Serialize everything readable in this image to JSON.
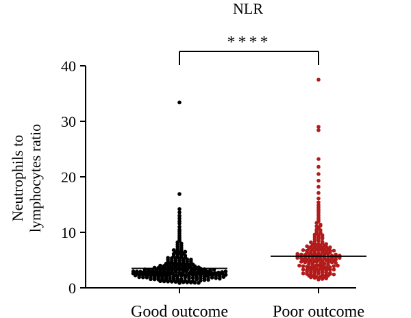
{
  "chart_data": {
    "type": "scatter",
    "title": "NLR",
    "ylabel_lines": [
      "Neutrophils to",
      "lymphocytes ratio"
    ],
    "xlabel": "",
    "categories": [
      "Good outcome",
      "Poor outcome"
    ],
    "ylim": [
      0,
      40
    ],
    "yticks": [
      0,
      10,
      20,
      30,
      40
    ],
    "grid": false,
    "significance": "****",
    "series": [
      {
        "name": "Good outcome",
        "color": "#000000",
        "median": 3.5,
        "values": [
          33.4,
          16.9,
          14.2,
          13.6,
          13.0,
          12.5,
          12.0,
          11.6,
          11.0,
          10.5,
          10.2,
          9.8,
          9.4,
          9.1,
          8.8,
          8.5,
          8.2,
          8.0,
          7.8,
          7.6,
          7.4,
          7.2,
          7.0,
          6.9,
          6.8,
          6.7,
          6.6,
          6.5,
          6.4,
          6.3,
          6.2,
          6.1,
          6.0,
          5.9,
          5.8,
          5.7,
          5.6,
          5.5,
          5.45,
          5.4,
          5.35,
          5.3,
          5.25,
          5.2,
          5.15,
          5.1,
          5.05,
          5.0,
          4.95,
          4.9,
          4.85,
          4.8,
          4.75,
          4.7,
          4.65,
          4.6,
          4.55,
          4.5,
          4.45,
          4.4,
          4.35,
          4.3,
          4.25,
          4.2,
          4.15,
          4.1,
          4.05,
          4.0,
          3.96,
          3.92,
          3.88,
          3.84,
          3.8,
          3.76,
          3.72,
          3.68,
          3.64,
          3.6,
          3.56,
          3.52,
          3.48,
          3.44,
          3.4,
          3.36,
          3.32,
          3.28,
          3.24,
          3.2,
          3.16,
          3.12,
          3.08,
          3.04,
          3.0,
          2.97,
          2.94,
          2.91,
          2.88,
          2.85,
          2.82,
          2.79,
          2.76,
          2.73,
          2.7,
          2.67,
          2.64,
          2.61,
          2.58,
          2.55,
          2.52,
          2.49,
          2.46,
          2.43,
          2.4,
          2.37,
          2.34,
          2.31,
          2.28,
          2.25,
          2.22,
          2.19,
          2.16,
          2.13,
          2.1,
          2.07,
          2.04,
          2.01,
          1.98,
          1.95,
          1.92,
          1.89,
          1.86,
          1.83,
          1.8,
          1.77,
          1.74,
          1.71,
          1.68,
          1.65,
          1.62,
          1.59,
          1.56,
          1.53,
          1.5,
          1.47,
          1.44,
          1.41,
          1.38,
          1.35,
          1.32,
          1.29,
          1.26,
          1.23,
          1.2,
          1.17,
          1.14,
          1.11,
          1.08,
          1.05,
          1.02,
          0.99,
          0.96,
          0.93,
          0.9,
          0.87,
          4.2,
          3.9,
          3.7,
          3.5,
          3.3,
          3.1,
          2.9,
          2.7,
          2.5,
          2.3,
          2.1,
          1.9,
          1.7,
          1.5,
          1.3,
          3.6,
          3.4,
          3.2,
          3.0,
          2.8,
          2.6,
          2.4,
          2.2,
          2.0,
          1.8,
          1.6,
          1.4,
          3.55,
          3.25,
          2.95,
          2.65,
          2.35,
          2.05,
          1.75,
          1.45,
          3.45,
          3.15,
          2.85,
          2.55,
          2.25,
          1.95,
          1.65,
          3.35,
          3.05,
          2.75,
          2.45,
          2.15,
          1.85,
          2.95,
          2.65,
          2.35,
          2.05,
          2.8,
          2.5,
          2.2,
          2.6,
          2.3,
          2.7,
          2.4,
          2.5,
          2.6,
          2.45,
          2.55,
          2.35,
          2.65,
          2.25,
          2.75,
          2.15,
          2.85,
          2.05,
          2.95,
          1.95,
          3.05,
          1.85,
          3.15,
          1.75,
          3.25,
          1.65
        ]
      },
      {
        "name": "Poor outcome",
        "color": "#b31b1b",
        "median": 5.7,
        "values": [
          37.5,
          29.0,
          28.4,
          23.2,
          21.8,
          20.5,
          19.3,
          18.2,
          17.1,
          16.1,
          15.4,
          14.9,
          14.5,
          14.1,
          13.8,
          13.4,
          13.0,
          12.6,
          12.3,
          12.0,
          11.7,
          11.4,
          11.1,
          10.8,
          10.5,
          10.2,
          10.0,
          9.8,
          9.6,
          9.4,
          9.2,
          9.0,
          8.8,
          8.6,
          8.4,
          8.2,
          8.0,
          7.8,
          7.7,
          7.6,
          7.5,
          7.4,
          7.3,
          7.2,
          7.1,
          7.0,
          6.9,
          6.8,
          6.7,
          6.6,
          6.5,
          6.4,
          6.3,
          6.2,
          6.1,
          6.0,
          5.95,
          5.9,
          5.85,
          5.8,
          5.75,
          5.7,
          5.65,
          5.6,
          5.55,
          5.5,
          5.45,
          5.4,
          5.35,
          5.3,
          5.25,
          5.2,
          5.15,
          5.1,
          5.05,
          5.0,
          4.9,
          4.8,
          4.7,
          4.6,
          4.5,
          4.4,
          4.3,
          4.2,
          4.1,
          4.0,
          3.9,
          3.8,
          3.7,
          3.6,
          3.5,
          3.4,
          3.3,
          3.2,
          3.1,
          3.0,
          2.9,
          2.8,
          2.7,
          2.6,
          2.5,
          2.4,
          2.3,
          2.2,
          2.1,
          2.0,
          1.9,
          1.8,
          1.7,
          1.6,
          1.5,
          6.8,
          6.5,
          6.2,
          5.9,
          5.6,
          5.3,
          5.0,
          4.7,
          4.4,
          4.1,
          3.8,
          3.5,
          3.2,
          2.9,
          2.6,
          2.3,
          2.0,
          1.7,
          6.4,
          6.0,
          5.6,
          5.2,
          4.8,
          4.4,
          4.0,
          3.6,
          3.2,
          2.8,
          2.4,
          2.0,
          6.6,
          6.1,
          5.5,
          5.0,
          4.5,
          3.9,
          3.4,
          2.8,
          2.2,
          7.2,
          6.9,
          6.3,
          5.8,
          5.4,
          4.9,
          4.3,
          3.7,
          3.1,
          2.5,
          7.9,
          7.4,
          6.7,
          6.0,
          5.1,
          4.2,
          3.3,
          2.4,
          8.9,
          8.1,
          7.3,
          6.4,
          5.5,
          4.6,
          3.7,
          2.7,
          9.5,
          8.5,
          7.6,
          6.7,
          5.8,
          4.9,
          3.9,
          10.4,
          9.1,
          7.9,
          6.9,
          5.7,
          4.5,
          3.3,
          11.2,
          9.9,
          8.3,
          7.0,
          5.4,
          4.0
        ]
      }
    ]
  }
}
